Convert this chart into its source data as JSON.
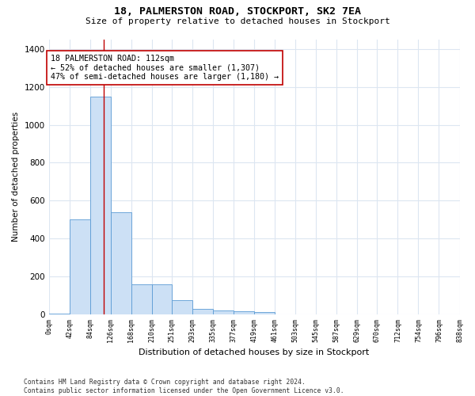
{
  "title": "18, PALMERSTON ROAD, STOCKPORT, SK2 7EA",
  "subtitle": "Size of property relative to detached houses in Stockport",
  "xlabel": "Distribution of detached houses by size in Stockport",
  "ylabel": "Number of detached properties",
  "bar_edges": [
    0,
    42,
    84,
    126,
    168,
    210,
    251,
    293,
    335,
    377,
    419,
    461,
    503,
    545,
    587,
    629,
    670,
    712,
    754,
    796,
    838
  ],
  "bar_heights": [
    5,
    500,
    1150,
    540,
    160,
    160,
    75,
    30,
    22,
    18,
    10,
    0,
    0,
    0,
    0,
    0,
    0,
    0,
    0,
    0
  ],
  "bar_color": "#cce0f5",
  "bar_edge_color": "#5b9bd5",
  "property_sqm": 112,
  "vline_color": "#c00000",
  "annotation_text": "18 PALMERSTON ROAD: 112sqm\n← 52% of detached houses are smaller (1,307)\n47% of semi-detached houses are larger (1,180) →",
  "annotation_box_color": "#ffffff",
  "annotation_border_color": "#c00000",
  "ylim": [
    0,
    1450
  ],
  "yticks": [
    0,
    200,
    400,
    600,
    800,
    1000,
    1200,
    1400
  ],
  "tick_labels": [
    "0sqm",
    "42sqm",
    "84sqm",
    "126sqm",
    "168sqm",
    "210sqm",
    "251sqm",
    "293sqm",
    "335sqm",
    "377sqm",
    "419sqm",
    "461sqm",
    "503sqm",
    "545sqm",
    "587sqm",
    "629sqm",
    "670sqm",
    "712sqm",
    "754sqm",
    "796sqm",
    "838sqm"
  ],
  "footer_text": "Contains HM Land Registry data © Crown copyright and database right 2024.\nContains public sector information licensed under the Open Government Licence v3.0.",
  "background_color": "#ffffff",
  "plot_bg_color": "#ffffff",
  "grid_color": "#dce6f1"
}
